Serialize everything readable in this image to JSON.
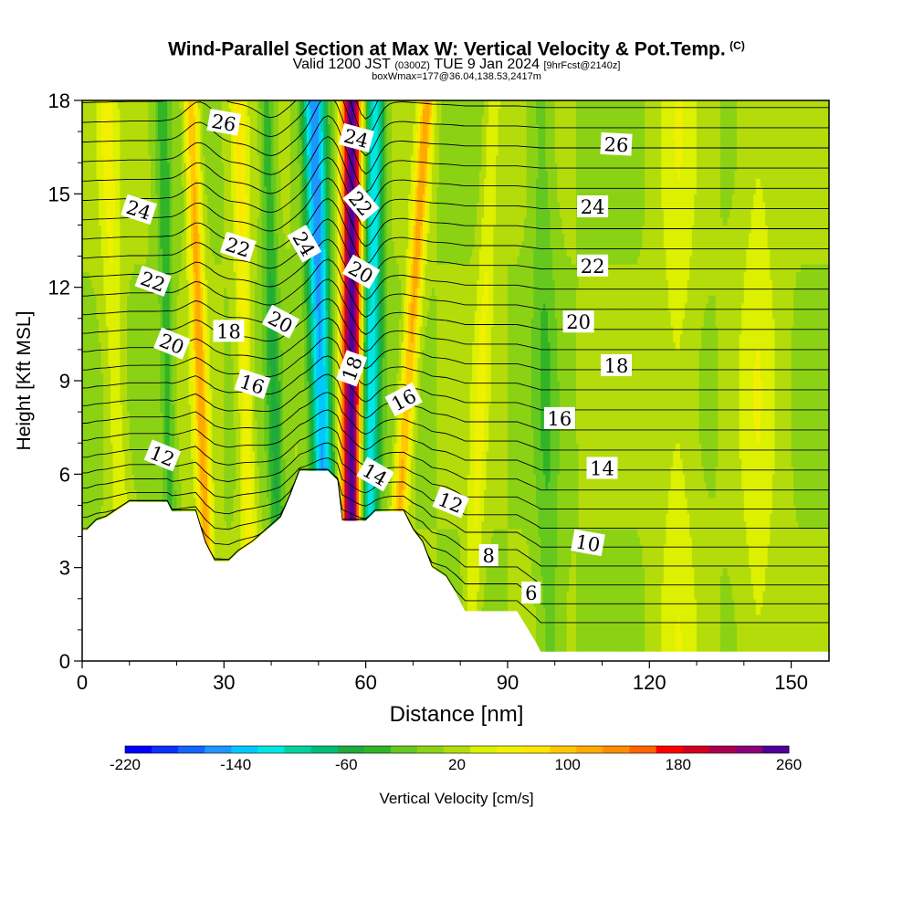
{
  "title": "Wind-Parallel Section at Max W: Vertical Velocity & Pot.Temp.",
  "title_mark": "(C)",
  "subtitle_prefix": "Valid 1200 JST",
  "subtitle_utc": "(0300Z)",
  "subtitle_date": "TUE 9 Jan 2024",
  "subtitle_fcst": "[9hrFcst@2140z]",
  "subtitle2": "boxWmax=177@36.04,138.53,2417m",
  "chart_data": {
    "type": "heatmap",
    "xlabel": "Distance [nm]",
    "ylabel": "Height [Kft MSL]",
    "xlim": [
      0,
      158
    ],
    "ylim": [
      0,
      18
    ],
    "x_ticks": [
      "0",
      "30",
      "60",
      "90",
      "120",
      "150"
    ],
    "y_ticks": [
      "0",
      "3",
      "6",
      "9",
      "12",
      "15",
      "18"
    ],
    "colorbar": {
      "label": "Vertical Velocity [cm/s]",
      "min": -220,
      "max": 260,
      "step": 20,
      "tick_labels": [
        "-220",
        "-140",
        "-60",
        "20",
        "100",
        "180",
        "260"
      ],
      "colors": [
        "#0000ff",
        "#0a32ff",
        "#1464ff",
        "#1e96ff",
        "#00c8ff",
        "#00e6e6",
        "#00d2a0",
        "#00be78",
        "#1eaa3c",
        "#32b428",
        "#64c81e",
        "#8cd214",
        "#b4dc0a",
        "#dcf000",
        "#f0f000",
        "#ffe600",
        "#ffc800",
        "#ffaa00",
        "#ff8c00",
        "#ff6400",
        "#ff0000",
        "#d2001e",
        "#aa0050",
        "#8c0078",
        "#500096"
      ]
    },
    "terrain": [
      [
        0,
        4.2
      ],
      [
        1,
        4.2
      ],
      [
        3,
        4.5
      ],
      [
        5,
        4.6
      ],
      [
        8,
        4.9
      ],
      [
        10,
        5.1
      ],
      [
        18,
        5.1
      ],
      [
        19,
        4.8
      ],
      [
        24,
        4.8
      ],
      [
        26,
        3.8
      ],
      [
        28,
        3.2
      ],
      [
        31,
        3.2
      ],
      [
        33,
        3.5
      ],
      [
        36,
        3.8
      ],
      [
        39,
        4.2
      ],
      [
        42,
        4.6
      ],
      [
        44,
        5.3
      ],
      [
        46,
        6.1
      ],
      [
        52,
        6.1
      ],
      [
        54,
        5.8
      ],
      [
        55,
        4.5
      ],
      [
        60,
        4.5
      ],
      [
        62,
        4.8
      ],
      [
        68,
        4.8
      ],
      [
        70,
        4.2
      ],
      [
        72,
        3.8
      ],
      [
        74,
        3.0
      ],
      [
        77,
        2.7
      ],
      [
        79,
        2.2
      ],
      [
        81,
        1.6
      ],
      [
        92,
        1.6
      ],
      [
        94,
        1.1
      ],
      [
        96,
        0.6
      ],
      [
        97,
        0.3
      ],
      [
        158,
        0.3
      ]
    ],
    "updraft_bands": [
      {
        "x_bottom": 57,
        "x_top": 57,
        "peak_w": 260,
        "width_nm": 2.2
      },
      {
        "x_bottom": 65,
        "x_top": 73,
        "peak_w": 110,
        "width_nm": 1.6
      },
      {
        "x_bottom": 27,
        "x_top": 23,
        "peak_w": 110,
        "width_nm": 1.5
      },
      {
        "x_bottom": 36,
        "x_top": 33,
        "peak_w": 60,
        "width_nm": 1.6
      },
      {
        "x_bottom": 9,
        "x_top": 5,
        "peak_w": 40,
        "width_nm": 2.2
      },
      {
        "x_bottom": 82,
        "x_top": 87,
        "peak_w": 40,
        "width_nm": 1.8
      },
      {
        "x_bottom": 126,
        "x_top": 126,
        "peak_w": 30,
        "width_nm": 4
      },
      {
        "x_bottom": 143,
        "x_top": 143,
        "peak_w": 30,
        "width_nm": 4
      }
    ],
    "downdraft_bands": [
      {
        "x_bottom": 52,
        "x_top": 49,
        "peak_w": -170,
        "width_nm": 2.4
      },
      {
        "x_bottom": 60,
        "x_top": 62,
        "peak_w": -140,
        "width_nm": 2.2
      },
      {
        "x_bottom": 19,
        "x_top": 17,
        "peak_w": -50,
        "width_nm": 1.6
      },
      {
        "x_bottom": 42,
        "x_top": 39,
        "peak_w": -60,
        "width_nm": 1.6
      },
      {
        "x_bottom": 99,
        "x_top": 97,
        "peak_w": -35,
        "width_nm": 2.6
      }
    ],
    "theta_labels": [
      {
        "text": "26",
        "x": 30,
        "y": 17.3,
        "rot": 10
      },
      {
        "text": "24",
        "x": 58,
        "y": 16.8,
        "rot": 15
      },
      {
        "text": "26",
        "x": 113,
        "y": 16.6,
        "rot": 3
      },
      {
        "text": "24",
        "x": 12,
        "y": 14.5,
        "rot": 18
      },
      {
        "text": "22",
        "x": 59,
        "y": 14.7,
        "rot": 50
      },
      {
        "text": "24",
        "x": 108,
        "y": 14.6,
        "rot": 0
      },
      {
        "text": "22",
        "x": 33,
        "y": 13.3,
        "rot": 18
      },
      {
        "text": "24",
        "x": 47,
        "y": 13.4,
        "rot": 60
      },
      {
        "text": "20",
        "x": 59,
        "y": 12.5,
        "rot": 30
      },
      {
        "text": "22",
        "x": 108,
        "y": 12.7,
        "rot": 0
      },
      {
        "text": "22",
        "x": 15,
        "y": 12.2,
        "rot": 20
      },
      {
        "text": "20",
        "x": 42,
        "y": 10.9,
        "rot": 28
      },
      {
        "text": "20",
        "x": 105,
        "y": 10.9,
        "rot": 0
      },
      {
        "text": "18",
        "x": 31,
        "y": 10.6,
        "rot": 0
      },
      {
        "text": "20",
        "x": 19,
        "y": 10.2,
        "rot": 22
      },
      {
        "text": "18",
        "x": 113,
        "y": 9.5,
        "rot": 0
      },
      {
        "text": "18",
        "x": 57,
        "y": 9.4,
        "rot": -70
      },
      {
        "text": "16",
        "x": 36,
        "y": 8.9,
        "rot": 18
      },
      {
        "text": "16",
        "x": 68,
        "y": 8.4,
        "rot": -28
      },
      {
        "text": "16",
        "x": 101,
        "y": 7.8,
        "rot": 0
      },
      {
        "text": "12",
        "x": 17,
        "y": 6.6,
        "rot": 22
      },
      {
        "text": "14",
        "x": 110,
        "y": 6.2,
        "rot": 0
      },
      {
        "text": "14",
        "x": 62,
        "y": 6.0,
        "rot": 30
      },
      {
        "text": "12",
        "x": 78,
        "y": 5.1,
        "rot": 22
      },
      {
        "text": "10",
        "x": 107,
        "y": 3.8,
        "rot": 10
      },
      {
        "text": "8",
        "x": 86,
        "y": 3.4,
        "rot": 0
      },
      {
        "text": "6",
        "x": 95,
        "y": 2.2,
        "rot": 0
      }
    ]
  }
}
